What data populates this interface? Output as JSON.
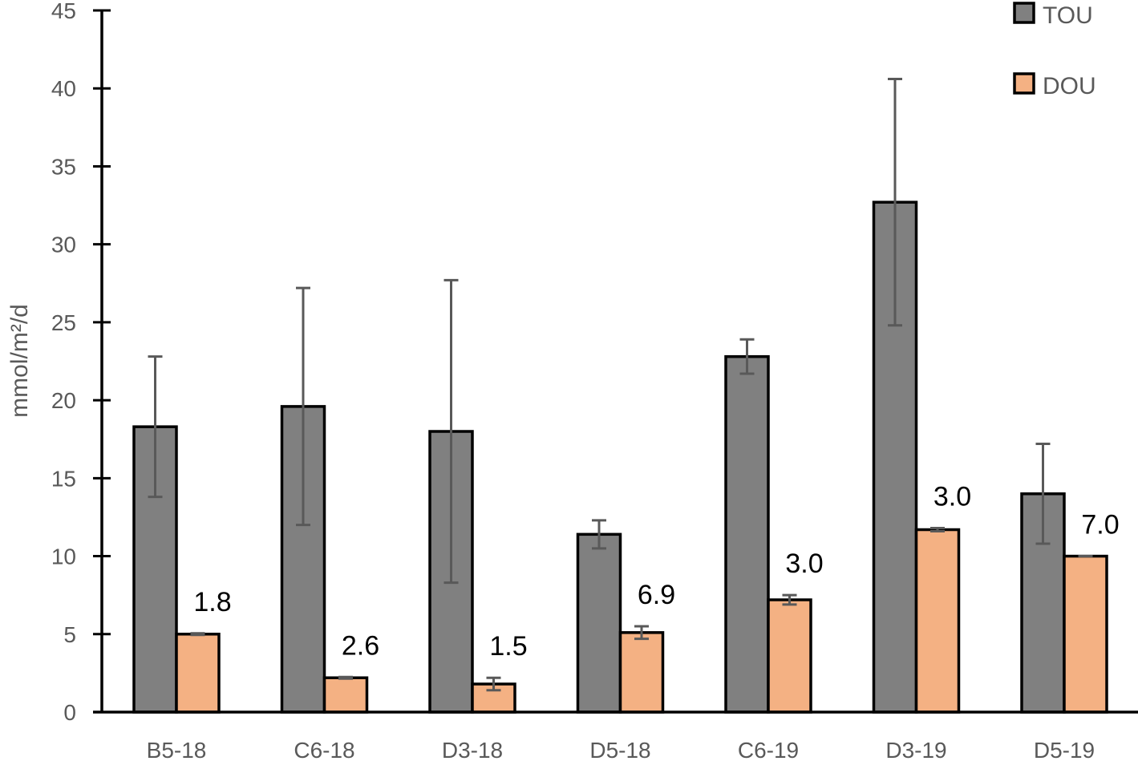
{
  "chart_data": {
    "type": "bar",
    "title": "",
    "xlabel": "",
    "ylabel": "mmol/m²/d",
    "ylim": [
      0,
      45
    ],
    "yticks": [
      0,
      5,
      10,
      15,
      20,
      25,
      30,
      35,
      40,
      45
    ],
    "grid": false,
    "legend_position": "top-right",
    "categories": [
      "B5-18",
      "C6-18",
      "D3-18",
      "D5-18",
      "C6-19",
      "D3-19",
      "D5-19"
    ],
    "series": [
      {
        "name": "TOU",
        "color": "#808080",
        "values": [
          18.3,
          19.6,
          18.0,
          11.4,
          22.8,
          32.7,
          14.0
        ],
        "error": [
          4.5,
          7.6,
          9.7,
          0.9,
          1.1,
          7.9,
          3.2
        ]
      },
      {
        "name": "DOU",
        "color": "#F4B183",
        "values": [
          5.0,
          2.2,
          1.8,
          5.1,
          7.2,
          11.7,
          10.0
        ],
        "error": [
          0.05,
          0.05,
          0.4,
          0.4,
          0.3,
          0.1,
          0.0
        ]
      }
    ],
    "annotations": [
      "1.8",
      "2.6",
      "1.5",
      "6.9",
      "3.0",
      "3.0",
      "7.0"
    ]
  },
  "legend": {
    "items": [
      "TOU",
      "DOU"
    ]
  }
}
